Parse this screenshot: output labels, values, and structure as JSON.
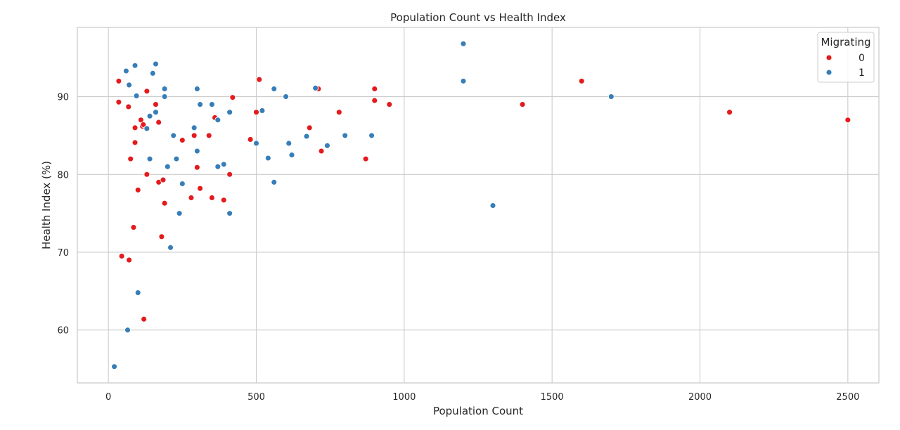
{
  "chart_data": {
    "type": "scatter",
    "title": "Population Count vs Health Index",
    "xlabel": "Population Count",
    "ylabel": "Health Index (%)",
    "xlim": [
      -105,
      2605
    ],
    "ylim": [
      53.2,
      98.9
    ],
    "xticks": [
      0,
      500,
      1000,
      1500,
      2000,
      2500
    ],
    "yticks": [
      60,
      70,
      80,
      90
    ],
    "ytick_suffix": "",
    "grid": true,
    "legend": {
      "title": "Migrating",
      "placement": "top-right"
    },
    "series": [
      {
        "name": "0",
        "color": "#e41a1c",
        "points": [
          [
            35,
            92.0
          ],
          [
            35,
            89.3
          ],
          [
            45,
            69.5
          ],
          [
            68,
            88.7
          ],
          [
            70,
            69.0
          ],
          [
            75,
            82.0
          ],
          [
            85,
            73.2
          ],
          [
            90,
            86.0
          ],
          [
            90,
            84.1
          ],
          [
            100,
            78.0
          ],
          [
            110,
            87.0
          ],
          [
            115,
            86.2
          ],
          [
            118,
            86.4
          ],
          [
            120,
            61.4
          ],
          [
            130,
            80.0
          ],
          [
            130,
            90.7
          ],
          [
            160,
            89.0
          ],
          [
            170,
            79.0
          ],
          [
            170,
            86.7
          ],
          [
            180,
            72.0
          ],
          [
            185,
            79.3
          ],
          [
            190,
            76.3
          ],
          [
            250,
            84.4
          ],
          [
            280,
            77.0
          ],
          [
            290,
            85.0
          ],
          [
            300,
            80.9
          ],
          [
            310,
            78.2
          ],
          [
            340,
            85.0
          ],
          [
            350,
            77.0
          ],
          [
            360,
            87.3
          ],
          [
            390,
            76.7
          ],
          [
            410,
            80.0
          ],
          [
            420,
            89.9
          ],
          [
            480,
            84.5
          ],
          [
            500,
            88.0
          ],
          [
            510,
            92.2
          ],
          [
            680,
            86.0
          ],
          [
            710,
            91.0
          ],
          [
            720,
            83.0
          ],
          [
            780,
            88.0
          ],
          [
            870,
            82.0
          ],
          [
            900,
            89.5
          ],
          [
            900,
            91.0
          ],
          [
            950,
            89.0
          ],
          [
            1400,
            89.0
          ],
          [
            1600,
            92.0
          ],
          [
            2100,
            88.0
          ],
          [
            2500,
            87.0
          ]
        ]
      },
      {
        "name": "1",
        "color": "#377eb8",
        "points": [
          [
            20,
            55.3
          ],
          [
            60,
            93.3
          ],
          [
            65,
            60.0
          ],
          [
            70,
            91.5
          ],
          [
            90,
            94.0
          ],
          [
            95,
            90.1
          ],
          [
            100,
            64.8
          ],
          [
            130,
            85.9
          ],
          [
            140,
            82.0
          ],
          [
            140,
            87.5
          ],
          [
            150,
            93.0
          ],
          [
            160,
            94.2
          ],
          [
            160,
            88.0
          ],
          [
            190,
            91.0
          ],
          [
            190,
            90.0
          ],
          [
            200,
            81.0
          ],
          [
            220,
            85.0
          ],
          [
            230,
            82.0
          ],
          [
            240,
            75.0
          ],
          [
            250,
            78.8
          ],
          [
            210,
            70.6
          ],
          [
            290,
            86.0
          ],
          [
            300,
            91.0
          ],
          [
            300,
            83.0
          ],
          [
            310,
            89.0
          ],
          [
            350,
            89.0
          ],
          [
            370,
            87.0
          ],
          [
            370,
            81.0
          ],
          [
            390,
            81.3
          ],
          [
            410,
            88.0
          ],
          [
            410,
            75.0
          ],
          [
            500,
            84.0
          ],
          [
            520,
            88.2
          ],
          [
            540,
            82.1
          ],
          [
            560,
            91.0
          ],
          [
            560,
            79.0
          ],
          [
            600,
            90.0
          ],
          [
            610,
            84.0
          ],
          [
            620,
            82.5
          ],
          [
            670,
            84.9
          ],
          [
            700,
            91.1
          ],
          [
            740,
            83.7
          ],
          [
            800,
            85.0
          ],
          [
            890,
            85.0
          ],
          [
            1200,
            96.8
          ],
          [
            1200,
            92.0
          ],
          [
            1300,
            76.0
          ],
          [
            1700,
            90.0
          ]
        ]
      }
    ]
  }
}
